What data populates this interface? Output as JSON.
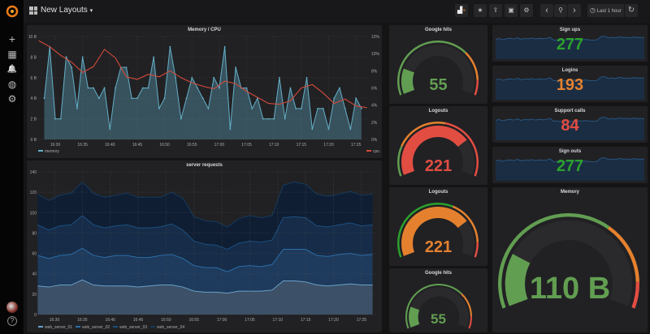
{
  "colors": {
    "green": "#629e51",
    "bright_green": "#2ca02c",
    "orange": "#e5812e",
    "red": "#e24d42",
    "memory": "#64b0c8",
    "cpu": "#d44a3a",
    "accent": "#eb7b18"
  },
  "sidebar": {
    "items": [
      {
        "icon": "grafana-logo-icon"
      },
      {
        "icon": "plus-icon",
        "glyph": "+"
      },
      {
        "icon": "dashboards-icon",
        "glyph": "▦"
      },
      {
        "icon": "bell-icon",
        "glyph": "🔔"
      },
      {
        "icon": "explore-icon",
        "glyph": "◍"
      },
      {
        "icon": "gear-icon",
        "glyph": "⚙"
      }
    ],
    "bottom": [
      {
        "icon": "avatar-icon"
      },
      {
        "icon": "help-icon",
        "glyph": "?"
      }
    ]
  },
  "topbar": {
    "title": "New Layouts",
    "caret": "▾",
    "time_range": "Last 1 hour",
    "buttons": [
      {
        "icon": "add-panel-icon",
        "glyph": "▟"
      },
      {
        "icon": "star-icon",
        "glyph": "★"
      },
      {
        "icon": "share-icon",
        "glyph": "⇪"
      },
      {
        "icon": "save-icon",
        "glyph": "▣"
      },
      {
        "icon": "settings-icon",
        "glyph": "⚙"
      },
      {
        "icon": "chevron-left-icon",
        "glyph": "‹"
      },
      {
        "icon": "zoom-out-icon",
        "glyph": "⚲"
      },
      {
        "icon": "chevron-right-icon",
        "glyph": "›"
      }
    ],
    "clock_glyph": "◷",
    "refresh_glyph": "↻"
  },
  "chart_data": [
    {
      "type": "line",
      "title": "Memory / CPU",
      "left_axis": {
        "ticks": [
          "0 B",
          "2 B",
          "4 B",
          "6 B",
          "8 B",
          "10 B"
        ],
        "ylim": [
          0,
          10
        ]
      },
      "right_axis": {
        "ticks": [
          "0%",
          "2%",
          "4%",
          "6%",
          "8%",
          "10%",
          "12%"
        ],
        "ylim": [
          0,
          12
        ]
      },
      "x_ticks": [
        "16:30",
        "16:35",
        "16:40",
        "16:45",
        "16:50",
        "16:55",
        "17:00",
        "17:05",
        "17:10",
        "17:15",
        "17:20",
        "17:25"
      ],
      "grid": true,
      "legend_placement": "bottom",
      "series": [
        {
          "name": "memory",
          "axis": "left",
          "color": "#64b0c8",
          "fill": true,
          "x": [
            "16:28",
            "16:29",
            "16:30",
            "16:31",
            "16:32",
            "16:33",
            "16:34",
            "16:35",
            "16:36",
            "16:37",
            "16:38",
            "16:39",
            "16:40",
            "16:41",
            "16:42",
            "16:43",
            "16:44",
            "16:45",
            "16:46",
            "16:47",
            "16:48",
            "16:49",
            "16:50",
            "16:51",
            "16:52",
            "16:53",
            "16:54",
            "16:55",
            "16:56",
            "16:57",
            "16:58",
            "16:59",
            "17:00",
            "17:01",
            "17:02",
            "17:03",
            "17:04",
            "17:05",
            "17:06",
            "17:07",
            "17:08",
            "17:09",
            "17:10",
            "17:11",
            "17:12",
            "17:13",
            "17:14",
            "17:15",
            "17:16",
            "17:17",
            "17:18",
            "17:19",
            "17:20",
            "17:21",
            "17:22",
            "17:23",
            "17:24",
            "17:25",
            "17:26"
          ],
          "values": [
            4,
            9,
            2,
            2,
            8,
            7,
            3,
            8,
            5,
            5,
            4,
            5,
            1,
            5,
            7,
            7,
            4,
            4,
            5,
            5,
            8,
            3,
            4,
            9,
            6,
            2,
            4,
            6,
            5,
            4,
            3,
            6,
            5,
            9,
            1,
            7,
            5,
            5,
            3,
            4,
            2,
            2,
            2,
            6,
            2,
            5,
            3,
            3,
            6,
            1,
            3,
            3,
            1,
            4,
            5,
            3,
            1,
            4,
            3
          ]
        },
        {
          "name": "cpu",
          "axis": "right",
          "color": "#d44a3a",
          "fill": false,
          "x": [
            "16:27",
            "16:29",
            "16:31",
            "16:33",
            "16:35",
            "16:37",
            "16:39",
            "16:41",
            "16:43",
            "16:45",
            "16:47",
            "16:49",
            "16:51",
            "16:53",
            "16:55",
            "16:57",
            "16:59",
            "17:01",
            "17:03",
            "17:05",
            "17:07",
            "17:09",
            "17:11",
            "17:13",
            "17:15",
            "17:17",
            "17:19",
            "17:21",
            "17:23",
            "17:25",
            "17:27"
          ],
          "values": [
            11.5,
            10.8,
            9.8,
            9,
            7.8,
            8.5,
            10.5,
            9.5,
            7.3,
            7.0,
            7.6,
            7.3,
            8.0,
            7.2,
            6.6,
            6.2,
            5.9,
            6.8,
            6.5,
            5.6,
            4.9,
            4.2,
            4.1,
            4.5,
            6.0,
            6.4,
            5.4,
            4.2,
            4.7,
            3.9,
            3.7
          ]
        }
      ]
    },
    {
      "type": "area",
      "stacked": true,
      "title": "server requests",
      "ylim": [
        0,
        140
      ],
      "y_ticks": [
        "0",
        "20",
        "40",
        "60",
        "80",
        "100",
        "120",
        "140"
      ],
      "x_ticks": [
        "16:30",
        "16:35",
        "16:40",
        "16:45",
        "16:50",
        "16:55",
        "17:00",
        "17:05",
        "17:10",
        "17:15",
        "17:20",
        "17:25"
      ],
      "grid": true,
      "legend_placement": "bottom",
      "x": [
        "16:27",
        "16:29",
        "16:31",
        "16:33",
        "16:35",
        "16:37",
        "16:39",
        "16:41",
        "16:43",
        "16:45",
        "16:47",
        "16:49",
        "16:51",
        "16:53",
        "16:55",
        "16:57",
        "16:59",
        "17:01",
        "17:03",
        "17:05",
        "17:07",
        "17:09",
        "17:11",
        "17:13",
        "17:15",
        "17:17",
        "17:19",
        "17:21",
        "17:23",
        "17:25",
        "17:27"
      ],
      "series": [
        {
          "name": "web_server_01",
          "line": "#6aa0c8",
          "fill": "#3c5068",
          "values": [
            28,
            27,
            29,
            29,
            34,
            29,
            28,
            28,
            28,
            27,
            28,
            29,
            29,
            27,
            23,
            22,
            22,
            21,
            23,
            23,
            23,
            24,
            33,
            33,
            32,
            29,
            28,
            29,
            30,
            29,
            29
          ]
        },
        {
          "name": "web_server_02",
          "line": "#2c6ea8",
          "fill": "#1e3a5c",
          "values": [
            30,
            28,
            29,
            30,
            31,
            29,
            28,
            30,
            30,
            29,
            28,
            29,
            30,
            28,
            25,
            24,
            24,
            21,
            24,
            25,
            24,
            25,
            31,
            31,
            32,
            29,
            29,
            30,
            30,
            29,
            30
          ]
        },
        {
          "name": "web_server_03",
          "line": "#1d4f80",
          "fill": "#162c48",
          "values": [
            30,
            28,
            29,
            29,
            32,
            30,
            29,
            29,
            30,
            29,
            29,
            28,
            30,
            28,
            24,
            23,
            22,
            22,
            23,
            24,
            24,
            24,
            31,
            32,
            31,
            29,
            29,
            29,
            30,
            29,
            29
          ]
        },
        {
          "name": "web_server_04",
          "line": "#163a5e",
          "fill": "#0f1e33",
          "values": [
            30,
            29,
            30,
            31,
            33,
            31,
            30,
            30,
            31,
            30,
            30,
            29,
            31,
            31,
            24,
            23,
            23,
            22,
            24,
            25,
            24,
            24,
            32,
            34,
            33,
            31,
            30,
            30,
            31,
            30,
            30
          ]
        }
      ]
    }
  ],
  "gauges": [
    {
      "title": "Google hits",
      "value": "55",
      "num": 55,
      "min": 0,
      "max": 300,
      "thresholds": [
        210,
        270
      ],
      "value_color": "#629e51",
      "band_colors": [
        "#629e51",
        "#e5812e",
        "#e24d42"
      ]
    },
    {
      "title": "Logouts",
      "value": "221",
      "num": 221,
      "min": 0,
      "max": 300,
      "thresholds": [
        60,
        165
      ],
      "value_color": "#e24d42",
      "band_colors": [
        "#629e51",
        "#e5812e",
        "#e24d42"
      ]
    },
    {
      "title": "Logouts",
      "value": "221",
      "num": 221,
      "min": 0,
      "max": 300,
      "thresholds": [
        180,
        270
      ],
      "value_color": "#e5812e",
      "band_colors": [
        "#2ca02c",
        "#e5812e",
        "#e24d42"
      ]
    },
    {
      "title": "Google hits",
      "value": "55",
      "num": 55,
      "min": 0,
      "max": 300,
      "thresholds": [
        210,
        270
      ],
      "value_color": "#629e51",
      "band_colors": [
        "#629e51",
        "#e5812e",
        "#e24d42"
      ]
    },
    {
      "title": "Memory",
      "value": "110 B",
      "num": 110,
      "min": 0,
      "max": 500,
      "thresholds": [
        330,
        450
      ],
      "value_color": "#629e51",
      "band_colors": [
        "#629e51",
        "#e5812e",
        "#e24d42"
      ]
    }
  ],
  "stats": {
    "sparkline": [
      0.82,
      0.85,
      0.8,
      0.84,
      0.86,
      0.83,
      0.88,
      0.82,
      0.85,
      0.84,
      0.87,
      0.83,
      0.86,
      0.84,
      0.85,
      0.9,
      0.78,
      0.8,
      0.77,
      0.79,
      0.8,
      0.78,
      0.82,
      0.79,
      0.8,
      0.81,
      0.79,
      0.78,
      0.8,
      0.93,
      0.95,
      0.88,
      0.9,
      0.87,
      0.92,
      0.89,
      0.9,
      0.88,
      0.91,
      0.89,
      0.9,
      0.88
    ],
    "items": [
      {
        "title": "Sign ups",
        "value": "277",
        "color": "#2ca02c"
      },
      {
        "title": "Logins",
        "value": "193",
        "color": "#e5812e"
      },
      {
        "title": "Support calls",
        "value": "84",
        "color": "#e24d42"
      },
      {
        "title": "Sign outs",
        "value": "277",
        "color": "#2ca02c"
      }
    ]
  }
}
